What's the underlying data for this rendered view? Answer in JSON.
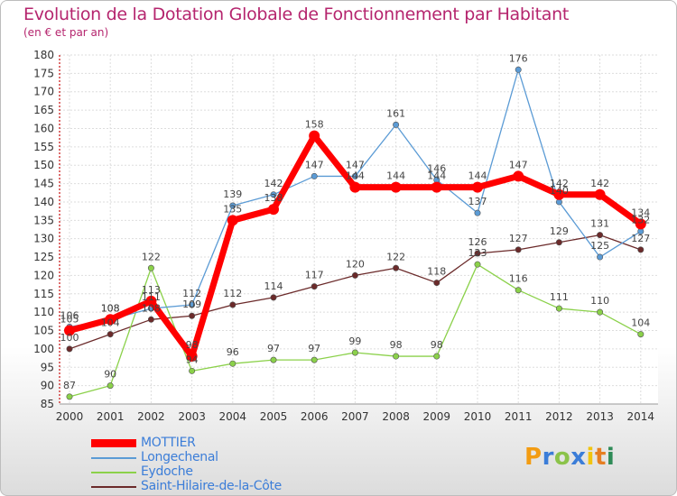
{
  "title": "Evolution de la Dotation Globale de Fonctionnement par Habitant",
  "subtitle": "(en € et par an)",
  "chart_data": {
    "type": "line",
    "title": "Evolution de la Dotation Globale de Fonctionnement par Habitant",
    "subtitle": "(en € et par an)",
    "xlabel": "",
    "ylabel": "",
    "categories": [
      "2000",
      "2001",
      "2002",
      "2003",
      "2004",
      "2005",
      "2006",
      "2007",
      "2008",
      "2009",
      "2010",
      "2011",
      "2012",
      "2013",
      "2014"
    ],
    "ylim": [
      85,
      180
    ],
    "yticks": [
      85,
      90,
      95,
      100,
      105,
      110,
      115,
      120,
      125,
      130,
      135,
      140,
      145,
      150,
      155,
      160,
      165,
      170,
      175,
      180
    ],
    "grid": true,
    "legend_position": "bottom-left",
    "series": [
      {
        "name": "MOTTIER",
        "color": "#ff0000",
        "values": [
          105,
          108,
          113,
          98,
          135,
          138,
          158,
          144,
          144,
          144,
          144,
          147,
          142,
          142,
          134
        ]
      },
      {
        "name": "Longechenal",
        "color": "#5b9bd5",
        "values": [
          106,
          108,
          111,
          112,
          139,
          142,
          147,
          147,
          161,
          146,
          137,
          176,
          140,
          125,
          132
        ]
      },
      {
        "name": "Eydoche",
        "color": "#8bd14a",
        "values": [
          87,
          90,
          122,
          94,
          96,
          97,
          97,
          99,
          98,
          98,
          123,
          116,
          111,
          110,
          104
        ]
      },
      {
        "name": "Saint-Hilaire-de-la-Côte",
        "color": "#6b2a2a",
        "values": [
          100,
          104,
          108,
          109,
          112,
          114,
          117,
          120,
          122,
          118,
          126,
          127,
          129,
          131,
          127
        ]
      }
    ]
  },
  "legend": {
    "items": [
      {
        "label": "MOTTIER",
        "color": "#ff0000"
      },
      {
        "label": "Longechenal",
        "color": "#5b9bd5"
      },
      {
        "label": "Eydoche",
        "color": "#8bd14a"
      },
      {
        "label": "Saint-Hilaire-de-la-Côte",
        "color": "#6b2a2a"
      }
    ]
  },
  "logo": {
    "letters": [
      "P",
      "r",
      "o",
      "x",
      "i",
      "t",
      "i"
    ],
    "colors": [
      "#f39c12",
      "#3b7dd8",
      "#8bc34a",
      "#3b7dd8",
      "#f1c40f",
      "#e67e22",
      "#2e8b57"
    ]
  }
}
